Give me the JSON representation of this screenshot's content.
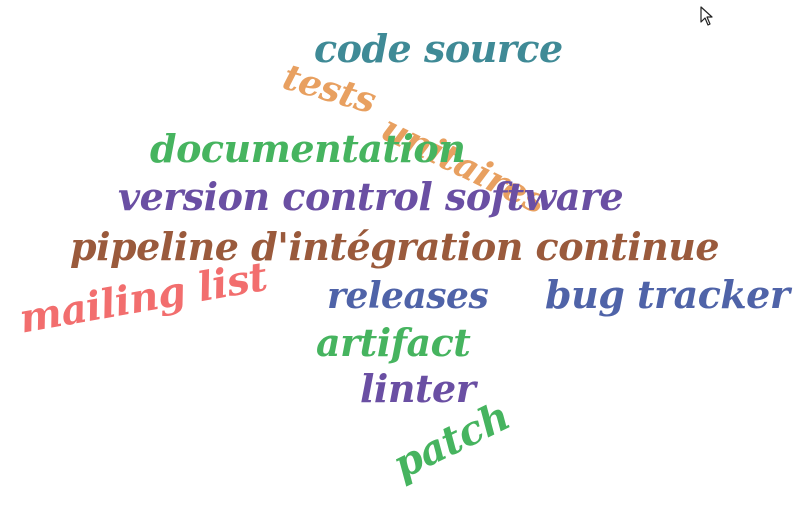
{
  "words": [
    {
      "text": "code source",
      "color": "#3f8a96"
    },
    {
      "text": "tests",
      "color": "#e8a060"
    },
    {
      "text": "unitaires",
      "color": "#e8a060"
    },
    {
      "text": "documentation",
      "color": "#46b45f"
    },
    {
      "text": "version control software",
      "color": "#6a4fa3"
    },
    {
      "text": "pipeline d'intégration continue",
      "color": "#9a5a3c"
    },
    {
      "text": "releases",
      "color": "#4f63a8"
    },
    {
      "text": "bug tracker",
      "color": "#4f63a8"
    },
    {
      "text": "mailing list",
      "color": "#f26e6e"
    },
    {
      "text": "artifact",
      "color": "#46b45f"
    },
    {
      "text": "linter",
      "color": "#6a4fa3"
    },
    {
      "text": "patch",
      "color": "#46b45f"
    }
  ],
  "cursor_icon": "mouse-pointer-icon"
}
